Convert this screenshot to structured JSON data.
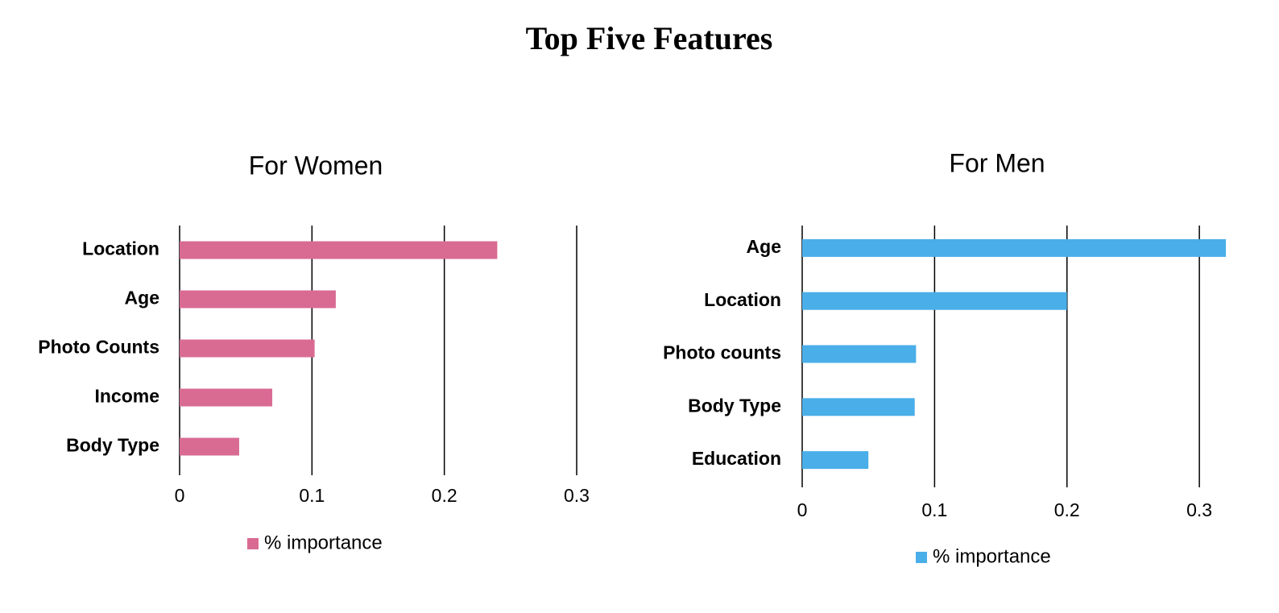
{
  "title": "Top Five Features",
  "chart_data": [
    {
      "type": "bar",
      "orientation": "horizontal",
      "title": "For Women",
      "categories": [
        "Location",
        "Age",
        "Photo Counts",
        "Income",
        "Body Type"
      ],
      "series": [
        {
          "name": "% importance",
          "color": "#d96b93",
          "values": [
            0.24,
            0.118,
            0.102,
            0.07,
            0.045
          ]
        }
      ],
      "xlim": [
        0,
        0.3
      ],
      "xticks": [
        0,
        0.1,
        0.2,
        0.3
      ],
      "grid": true
    },
    {
      "type": "bar",
      "orientation": "horizontal",
      "title": "For Men",
      "categories": [
        "Age",
        "Location",
        "Photo counts",
        "Body Type",
        "Education"
      ],
      "series": [
        {
          "name": "% importance",
          "color": "#4aaee8",
          "values": [
            0.32,
            0.2,
            0.086,
            0.085,
            0.05
          ]
        }
      ],
      "xlim": [
        0,
        0.32
      ],
      "xticks": [
        0,
        0.1,
        0.2,
        0.3
      ],
      "grid": true
    }
  ]
}
